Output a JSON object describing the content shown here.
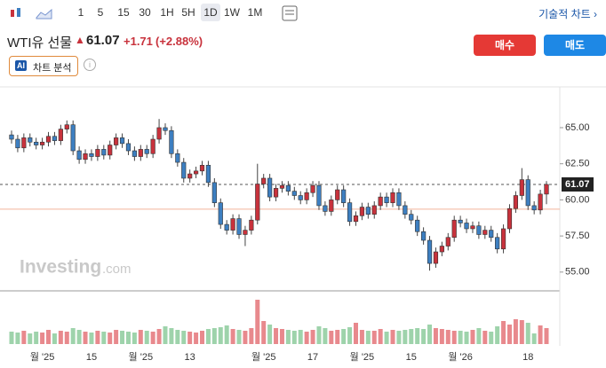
{
  "toolbar": {
    "intervals": [
      "1",
      "5",
      "15",
      "30",
      "1H",
      "5H",
      "1D",
      "1W",
      "1M"
    ],
    "active_interval": "1D",
    "technical_link": "기술적 차트 ›"
  },
  "header": {
    "title": "WTI유 선물",
    "price": "61.07",
    "change": "+1.71",
    "change_percent": "(+2.88%)",
    "buy": "매수",
    "sell": "매도",
    "ai_badge": "AI",
    "analysis": "차트 분석"
  },
  "watermark": {
    "brand": "Investing",
    "suffix": ".com"
  },
  "chart_data": {
    "type": "candlestick",
    "up_color": "#c8323c",
    "down_color": "#3d7fc1",
    "ylim": [
      53.7,
      67.7
    ],
    "yticks": [
      {
        "value": 55,
        "label": "55.00"
      },
      {
        "value": 57.5,
        "label": "57.50"
      },
      {
        "value": 60,
        "label": "60.00"
      },
      {
        "value": 62.5,
        "label": "62.50"
      },
      {
        "value": 65,
        "label": "65.00"
      }
    ],
    "last_price": 61.07,
    "prev_close": 59.36,
    "categories": [
      null,
      null,
      null,
      null,
      null,
      "월 '25",
      null,
      null,
      null,
      null,
      null,
      null,
      null,
      "15",
      null,
      null,
      null,
      null,
      null,
      null,
      null,
      "월 '25",
      null,
      null,
      null,
      null,
      null,
      null,
      null,
      "13",
      null,
      null,
      null,
      null,
      null,
      null,
      null,
      null,
      null,
      null,
      null,
      "월 '25",
      null,
      null,
      null,
      null,
      null,
      null,
      null,
      "17",
      null,
      null,
      null,
      null,
      null,
      null,
      null,
      "월 '25",
      null,
      null,
      null,
      null,
      null,
      null,
      null,
      "15",
      null,
      null,
      null,
      null,
      null,
      null,
      null,
      "월 '26",
      null,
      null,
      null,
      null,
      null,
      null,
      null,
      null,
      null,
      null,
      "18",
      null,
      null,
      null
    ],
    "open": [
      64.5,
      64.2,
      63.6,
      64.3,
      64.0,
      63.8,
      64.0,
      64.4,
      64.1,
      64.9,
      65.2,
      63.4,
      62.8,
      63.2,
      63.0,
      63.5,
      63.1,
      63.8,
      64.3,
      63.9,
      63.4,
      63.0,
      63.5,
      63.2,
      64.2,
      65.0,
      64.8,
      63.2,
      62.6,
      61.5,
      61.8,
      62.0,
      62.4,
      61.2,
      59.8,
      58.3,
      57.9,
      58.7,
      57.6,
      57.9,
      58.6,
      61.1,
      61.5,
      60.2,
      60.8,
      61.0,
      60.6,
      60.3,
      60.0,
      60.5,
      61.0,
      59.6,
      59.2,
      60.0,
      60.7,
      59.8,
      58.5,
      58.9,
      59.5,
      59.0,
      59.6,
      60.2,
      59.8,
      60.5,
      59.6,
      59.0,
      58.6,
      57.8,
      57.2,
      55.6,
      56.4,
      56.8,
      57.4,
      58.6,
      58.4,
      58.0,
      58.2,
      57.6,
      57.9,
      57.4,
      56.6,
      58.0,
      59.4,
      60.3,
      61.4,
      59.6,
      59.3,
      60.4
    ],
    "high": [
      64.8,
      64.5,
      64.6,
      64.6,
      64.3,
      64.3,
      64.7,
      64.7,
      65.2,
      65.5,
      65.5,
      63.7,
      63.5,
      63.5,
      63.8,
      63.8,
      64.1,
      64.6,
      64.6,
      64.2,
      63.7,
      63.8,
      63.8,
      64.5,
      65.6,
      65.3,
      65.1,
      63.5,
      62.9,
      62.1,
      62.3,
      62.7,
      62.7,
      61.5,
      60.1,
      58.6,
      59.0,
      59.0,
      58.2,
      58.9,
      62.5,
      61.8,
      61.8,
      61.1,
      61.3,
      61.3,
      60.9,
      60.6,
      60.8,
      61.3,
      61.3,
      59.9,
      60.3,
      61.0,
      61.0,
      60.1,
      59.2,
      59.8,
      59.8,
      59.9,
      60.5,
      60.5,
      60.8,
      60.8,
      59.9,
      59.3,
      58.9,
      58.1,
      57.5,
      56.7,
      57.1,
      57.7,
      58.9,
      58.9,
      58.7,
      58.5,
      58.5,
      58.2,
      58.2,
      57.7,
      58.3,
      59.7,
      60.6,
      62.2,
      61.7,
      59.9,
      60.7,
      61.3
    ],
    "low": [
      63.9,
      63.3,
      63.3,
      63.7,
      63.5,
      63.5,
      63.7,
      63.8,
      63.8,
      64.6,
      63.1,
      62.5,
      62.5,
      62.7,
      62.7,
      62.8,
      62.8,
      63.5,
      63.6,
      63.1,
      62.7,
      62.7,
      62.9,
      62.9,
      63.9,
      64.5,
      62.9,
      62.3,
      61.2,
      61.2,
      61.5,
      61.7,
      60.9,
      59.5,
      58.0,
      57.6,
      57.6,
      57.3,
      56.8,
      57.6,
      58.3,
      60.8,
      59.9,
      59.9,
      60.5,
      60.3,
      60.0,
      59.7,
      59.7,
      60.2,
      59.3,
      58.9,
      58.9,
      59.7,
      59.5,
      58.2,
      58.2,
      58.6,
      58.7,
      58.7,
      59.3,
      59.5,
      59.5,
      59.3,
      58.7,
      58.3,
      57.5,
      56.9,
      55.1,
      55.3,
      56.1,
      56.5,
      57.1,
      58.1,
      57.7,
      57.7,
      57.3,
      57.3,
      57.1,
      56.3,
      56.3,
      57.7,
      59.1,
      60.0,
      59.3,
      59.0,
      59.0,
      59.7
    ],
    "close": [
      64.2,
      63.6,
      64.3,
      64.0,
      63.8,
      64.0,
      64.4,
      64.1,
      64.9,
      65.2,
      63.4,
      62.8,
      63.2,
      63.0,
      63.5,
      63.1,
      63.8,
      64.3,
      63.9,
      63.4,
      63.0,
      63.5,
      63.2,
      64.2,
      65.0,
      64.8,
      63.2,
      62.6,
      61.5,
      61.8,
      62.0,
      62.4,
      61.2,
      59.8,
      58.3,
      57.9,
      58.7,
      57.6,
      57.9,
      58.6,
      61.1,
      61.5,
      60.2,
      60.8,
      61.0,
      60.6,
      60.3,
      60.0,
      60.5,
      61.0,
      59.6,
      59.2,
      60.0,
      60.7,
      59.8,
      58.5,
      58.9,
      59.5,
      59.0,
      59.6,
      60.2,
      59.8,
      60.5,
      59.6,
      59.0,
      58.6,
      57.8,
      57.2,
      55.6,
      56.4,
      56.8,
      57.4,
      58.6,
      58.4,
      58.0,
      58.2,
      57.6,
      57.9,
      57.4,
      56.6,
      58.0,
      59.4,
      60.3,
      61.4,
      59.6,
      59.3,
      60.4,
      61.07
    ],
    "volume": [
      14,
      13,
      15,
      12,
      14,
      13,
      16,
      12,
      15,
      14,
      18,
      16,
      14,
      13,
      15,
      14,
      13,
      16,
      15,
      14,
      13,
      16,
      15,
      14,
      17,
      20,
      18,
      16,
      15,
      14,
      13,
      15,
      17,
      18,
      19,
      21,
      17,
      16,
      15,
      18,
      50,
      26,
      22,
      18,
      17,
      16,
      15,
      16,
      14,
      16,
      20,
      18,
      15,
      16,
      17,
      19,
      24,
      16,
      15,
      15,
      17,
      14,
      16,
      15,
      16,
      17,
      18,
      17,
      22,
      18,
      17,
      16,
      15,
      15,
      14,
      16,
      18,
      15,
      14,
      20,
      26,
      22,
      28,
      27,
      24,
      12,
      21,
      18
    ]
  }
}
